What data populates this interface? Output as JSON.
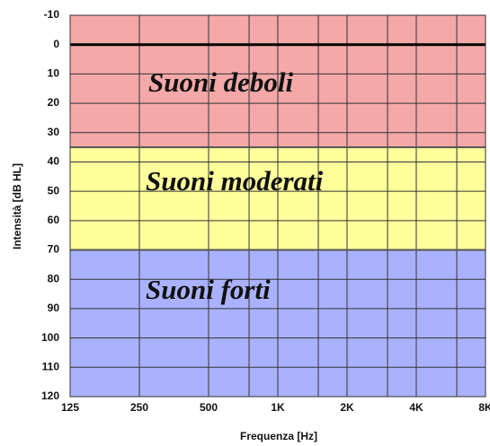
{
  "chart_data": {
    "type": "bands",
    "xlabel": "Frequenza [Hz]",
    "ylabel": "Intensità [dB HL]",
    "xlog": true,
    "xlim": [
      125,
      8000
    ],
    "xticks": [
      125,
      250,
      500,
      {
        "value": 1000,
        "label": "1K"
      },
      {
        "value": 2000,
        "label": "2K"
      },
      {
        "value": 4000,
        "label": "4K"
      },
      {
        "value": 8000,
        "label": "8K"
      }
    ],
    "xgrid_minor": [
      750,
      1500,
      3000,
      6000
    ],
    "ylim": [
      -10,
      120
    ],
    "yinverted": true,
    "yticks": [
      -10,
      0,
      10,
      20,
      30,
      40,
      50,
      60,
      70,
      80,
      90,
      100,
      110,
      120
    ],
    "grid": true,
    "reference_line": 0,
    "bands": [
      {
        "label": "Suoni deboli",
        "from": -10,
        "to": 35,
        "color": "#f4a8a8"
      },
      {
        "label": "Suoni moderati",
        "from": 35,
        "to": 70,
        "color": "#ffff9c"
      },
      {
        "label": "Suoni forti",
        "from": 70,
        "to": 120,
        "color": "#aab2ff"
      }
    ]
  }
}
